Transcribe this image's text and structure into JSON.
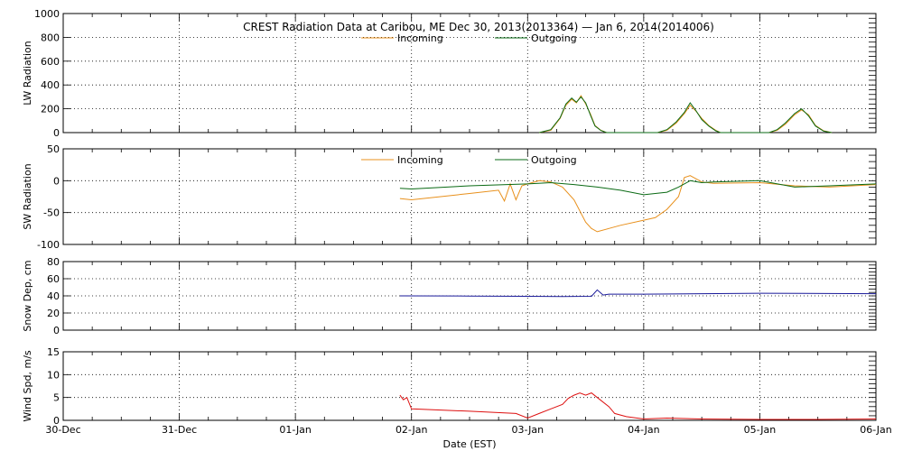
{
  "colors": {
    "incoming": "#e8901c",
    "outgoing": "#0a6a14",
    "snow": "#1a1a9a",
    "wind": "#dd1010",
    "axis": "#000000",
    "grid": "#000000"
  },
  "chart_data": [
    {
      "type": "line",
      "title": "CREST Radiation Data at Caribou, ME   Dec 30, 2013(2013364) — Jan  6, 2014(2014006)",
      "ylabel": "LW Radiation",
      "ylim": [
        0,
        1000
      ],
      "yticks": [
        0,
        200,
        400,
        600,
        800,
        1000
      ],
      "xlim": [
        0,
        7
      ],
      "legend": "top-center",
      "series": [
        {
          "name": "Incoming",
          "x": [
            4.1,
            4.2,
            4.28,
            4.33,
            4.38,
            4.42,
            4.46,
            4.5,
            4.54,
            4.58,
            4.63,
            4.68,
            4.72,
            5.12,
            5.2,
            5.28,
            5.35,
            5.4,
            5.45,
            5.5,
            5.56,
            5.62,
            5.66,
            6.08,
            6.15,
            6.22,
            6.3,
            6.36,
            6.42,
            6.48,
            6.55,
            6.62
          ],
          "y": [
            0,
            20,
            120,
            230,
            280,
            250,
            310,
            240,
            160,
            60,
            20,
            0,
            0,
            0,
            20,
            80,
            160,
            230,
            180,
            120,
            60,
            20,
            0,
            0,
            20,
            70,
            150,
            190,
            150,
            60,
            15,
            0
          ]
        },
        {
          "name": "Outgoing",
          "x": [
            4.1,
            4.2,
            4.28,
            4.33,
            4.38,
            4.42,
            4.46,
            4.5,
            4.54,
            4.58,
            4.63,
            4.68,
            4.72,
            5.12,
            5.2,
            5.28,
            5.35,
            5.4,
            5.45,
            5.5,
            5.56,
            5.62,
            5.66,
            6.08,
            6.15,
            6.22,
            6.3,
            6.36,
            6.42,
            6.48,
            6.55,
            6.62
          ],
          "y": [
            0,
            25,
            125,
            240,
            290,
            255,
            300,
            250,
            150,
            55,
            18,
            0,
            0,
            0,
            25,
            90,
            170,
            250,
            185,
            110,
            55,
            15,
            0,
            0,
            25,
            80,
            160,
            200,
            140,
            55,
            12,
            0
          ]
        }
      ]
    },
    {
      "type": "line",
      "ylabel": "SW Radiation",
      "ylim": [
        -100,
        50
      ],
      "yticks": [
        -100,
        -50,
        0,
        50
      ],
      "xlim": [
        0,
        7
      ],
      "legend": "top-center",
      "series": [
        {
          "name": "Incoming",
          "x": [
            2.9,
            3.0,
            3.5,
            3.75,
            3.8,
            3.85,
            3.9,
            3.95,
            4.0,
            4.1,
            4.2,
            4.3,
            4.4,
            4.5,
            4.55,
            4.6,
            4.7,
            4.8,
            5.0,
            5.1,
            5.2,
            5.3,
            5.35,
            5.4,
            5.5,
            5.6,
            6.0,
            6.3,
            6.6,
            7.0
          ],
          "y": [
            -28,
            -30,
            -20,
            -15,
            -32,
            -5,
            -30,
            -8,
            -5,
            0,
            -2,
            -10,
            -30,
            -65,
            -75,
            -80,
            -75,
            -70,
            -62,
            -58,
            -45,
            -25,
            5,
            8,
            -2,
            -4,
            -3,
            -8,
            -10,
            -6
          ],
          "data_labels": []
        },
        {
          "name": "Outgoing",
          "x": [
            2.9,
            3.0,
            3.5,
            4.0,
            4.2,
            4.4,
            4.6,
            4.8,
            5.0,
            5.1,
            5.2,
            5.3,
            5.4,
            5.5,
            5.6,
            6.0,
            6.3,
            6.6,
            7.0
          ],
          "y": [
            -12,
            -13,
            -8,
            -5,
            -3,
            -6,
            -10,
            -15,
            -22,
            -20,
            -18,
            -10,
            0,
            -3,
            -2,
            0,
            -10,
            -8,
            -5
          ]
        }
      ]
    },
    {
      "type": "line",
      "ylabel": "Snow Dep, cm",
      "ylim": [
        0,
        80
      ],
      "yticks": [
        0,
        20,
        40,
        60,
        80
      ],
      "xlim": [
        0,
        7
      ],
      "series": [
        {
          "name": "",
          "x": [
            2.9,
            3.5,
            4.0,
            4.3,
            4.55,
            4.6,
            4.65,
            4.7,
            5.0,
            5.5,
            6.0,
            7.0
          ],
          "y": [
            40,
            39.8,
            39.5,
            39.2,
            39.5,
            47,
            41,
            42,
            42,
            42.5,
            43,
            42.5
          ]
        }
      ]
    },
    {
      "type": "line",
      "ylabel": "Wind Spd, m/s",
      "xlabel": "Date (EST)",
      "ylim": [
        0,
        15
      ],
      "yticks": [
        0,
        5,
        10,
        15
      ],
      "xlim": [
        0,
        7
      ],
      "xtick_labels": [
        "30-Dec",
        "31-Dec",
        "01-Jan",
        "02-Jan",
        "03-Jan",
        "04-Jan",
        "05-Jan",
        "06-Jan"
      ],
      "series": [
        {
          "name": "",
          "x": [
            2.9,
            2.93,
            2.96,
            3.0,
            3.5,
            3.9,
            4.0,
            4.1,
            4.2,
            4.3,
            4.35,
            4.4,
            4.45,
            4.5,
            4.55,
            4.6,
            4.7,
            4.75,
            4.85,
            5.0,
            5.2,
            5.5,
            6.0,
            6.5,
            7.0
          ],
          "y": [
            5.5,
            4.5,
            5.0,
            2.5,
            2.0,
            1.5,
            0.5,
            1.5,
            2.5,
            3.5,
            4.8,
            5.5,
            6.0,
            5.5,
            6.0,
            5.0,
            3.0,
            1.5,
            0.8,
            0.3,
            0.5,
            0.3,
            0.2,
            0.2,
            0.3
          ]
        }
      ]
    }
  ]
}
